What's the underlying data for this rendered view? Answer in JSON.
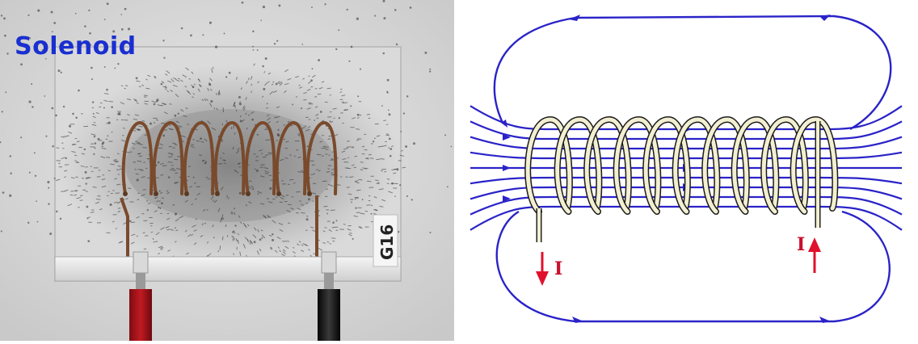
{
  "title": "Solenoid",
  "photo": {
    "plate_label": "G16"
  },
  "diagram": {
    "current_label_left": "I",
    "current_label_right": "I",
    "field_line_color": "#2a23c8",
    "current_arrow_color": "#e0112b",
    "coil_color": "#f2efd2"
  }
}
